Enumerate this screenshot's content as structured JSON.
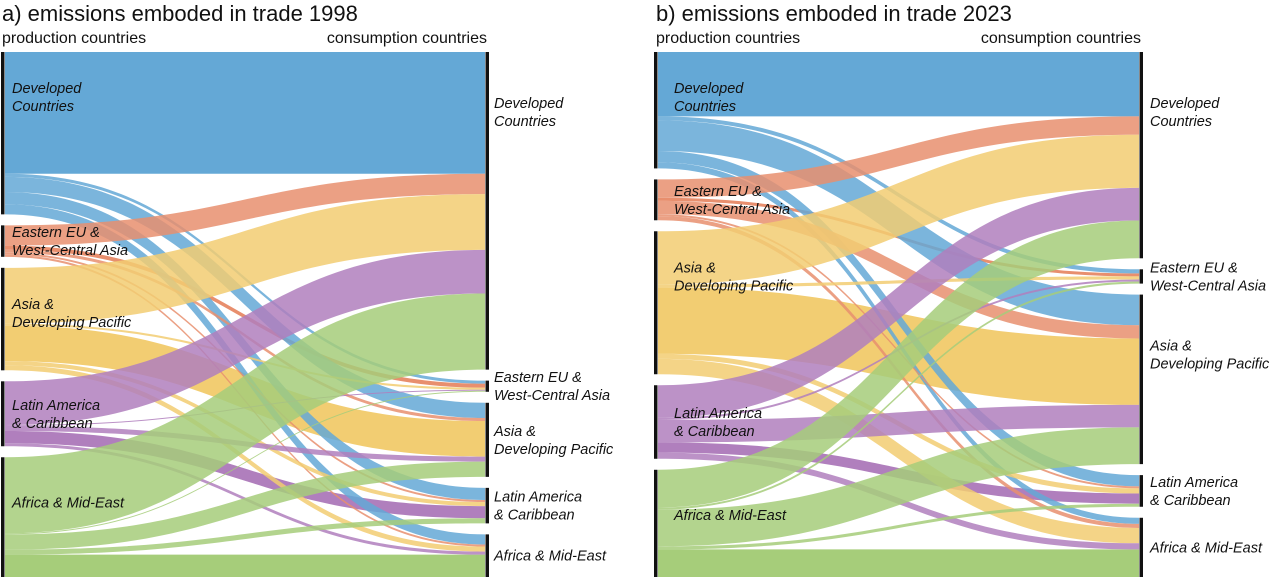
{
  "panels": [
    {
      "title": "a) emissions emboded in trade 1998",
      "left_header": "production countries",
      "right_header": "consumption countries"
    },
    {
      "title": "b) emissions emboded in trade 2023",
      "left_header": "production countries",
      "right_header": "consumption countries"
    }
  ],
  "regions": [
    {
      "key": "developed",
      "lines": [
        "Developed",
        "Countries"
      ]
    },
    {
      "key": "eastern",
      "lines": [
        "Eastern EU &",
        "West-Central Asia"
      ]
    },
    {
      "key": "asia",
      "lines": [
        "Asia &",
        "Developing Pacific"
      ]
    },
    {
      "key": "latin",
      "lines": [
        "Latin America",
        "& Caribbean"
      ]
    },
    {
      "key": "africa",
      "lines": [
        "Africa & Mid-East"
      ]
    }
  ],
  "colors": {
    "developed": "#64a8d6",
    "eastern": "#e88f6e",
    "asia": "#f2cd72",
    "latin": "#b07fbd",
    "africa": "#a6cd7a"
  },
  "chart_data": [
    {
      "type": "sankey",
      "year": "1998",
      "sources": [
        "Developed Countries",
        "Eastern EU & West-Central Asia",
        "Asia & Developing Pacific",
        "Latin America & Caribbean",
        "Africa & Mid-East"
      ],
      "targets": [
        "Developed Countries",
        "Eastern EU & West-Central Asia",
        "Asia & Developing Pacific",
        "Latin America & Caribbean",
        "Africa & Mid-East"
      ],
      "flows": [
        [
          120,
          3,
          15,
          12,
          10
        ],
        [
          20,
          4,
          3,
          2,
          2
        ],
        [
          55,
          2,
          35,
          4,
          5
        ],
        [
          43,
          1,
          5,
          12,
          3
        ],
        [
          75,
          1,
          15,
          5,
          22
        ]
      ]
    },
    {
      "type": "sankey",
      "year": "2023",
      "sources": [
        "Developed Countries",
        "Eastern EU & West-Central Asia",
        "Asia & Developing Pacific",
        "Latin America & Caribbean",
        "Africa & Mid-East"
      ],
      "targets": [
        "Developed Countries",
        "Eastern EU & West-Central Asia",
        "Asia & Developing Pacific",
        "Latin America & Caribbean",
        "Africa & Mid-East"
      ],
      "flows": [
        [
          63,
          4,
          30,
          11,
          6
        ],
        [
          18,
          3,
          13,
          2,
          4
        ],
        [
          52,
          3,
          65,
          5,
          15
        ],
        [
          32,
          2,
          22,
          10,
          6
        ],
        [
          37,
          2,
          36,
          3,
          27
        ]
      ]
    }
  ]
}
